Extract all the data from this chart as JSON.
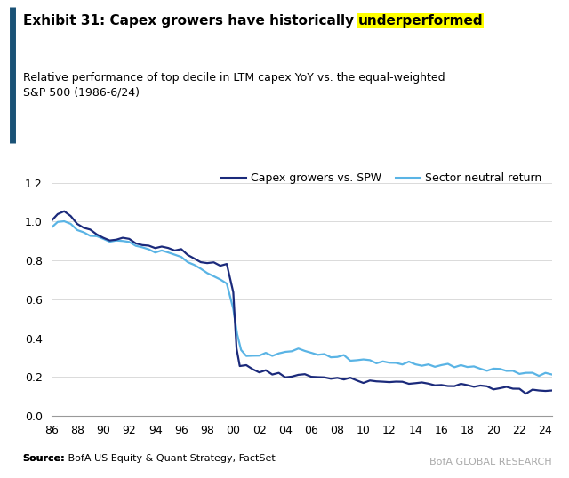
{
  "title_normal": "Exhibit 31: Capex growers have historically ",
  "title_highlight": "underperformed",
  "subtitle_line1": "Relative performance of top decile in LTM capex YoY vs. the equal-weighted",
  "subtitle_line2": "S&P 500 (1986-6/24)",
  "source_bold": "Source:",
  "source_normal": " BofA US Equity & Quant Strategy, FactSet",
  "branding": "BofA GLOBAL RESEARCH",
  "background_color": "#ffffff",
  "highlight_color": "#ffff00",
  "line1_color": "#1b2a7b",
  "line2_color": "#5ab4e5",
  "accent_bar_color": "#1a5276",
  "legend_label1": "Capex growers vs. SPW",
  "legend_label2": "Sector neutral return",
  "xlim": [
    1986,
    2024.5
  ],
  "ylim": [
    0.0,
    1.28
  ],
  "yticks": [
    0.0,
    0.2,
    0.4,
    0.6,
    0.8,
    1.0,
    1.2
  ],
  "xtick_labels": [
    "86",
    "88",
    "90",
    "92",
    "94",
    "96",
    "98",
    "00",
    "02",
    "04",
    "06",
    "08",
    "10",
    "12",
    "14",
    "16",
    "18",
    "20",
    "22",
    "24"
  ],
  "xtick_values": [
    1986,
    1988,
    1990,
    1992,
    1994,
    1996,
    1998,
    2000,
    2002,
    2004,
    2006,
    2008,
    2010,
    2012,
    2014,
    2016,
    2018,
    2020,
    2022,
    2024
  ],
  "capex_x": [
    1986.0,
    1986.5,
    1987.0,
    1987.5,
    1988.0,
    1988.5,
    1989.0,
    1989.5,
    1990.0,
    1990.5,
    1991.0,
    1991.5,
    1992.0,
    1992.5,
    1993.0,
    1993.5,
    1994.0,
    1994.5,
    1995.0,
    1995.5,
    1996.0,
    1996.5,
    1997.0,
    1997.5,
    1998.0,
    1998.5,
    1999.0,
    1999.5,
    2000.0,
    2000.25,
    2000.5,
    2001.0,
    2001.5,
    2002.0,
    2002.5,
    2003.0,
    2003.5,
    2004.0,
    2004.5,
    2005.0,
    2005.5,
    2006.0,
    2006.5,
    2007.0,
    2007.5,
    2008.0,
    2008.5,
    2009.0,
    2009.5,
    2010.0,
    2010.5,
    2011.0,
    2011.5,
    2012.0,
    2012.5,
    2013.0,
    2013.5,
    2014.0,
    2014.5,
    2015.0,
    2015.5,
    2016.0,
    2016.5,
    2017.0,
    2017.5,
    2018.0,
    2018.5,
    2019.0,
    2019.5,
    2020.0,
    2020.5,
    2021.0,
    2021.5,
    2022.0,
    2022.5,
    2023.0,
    2023.5,
    2024.0,
    2024.5
  ],
  "capex_y": [
    1.0,
    1.04,
    1.05,
    1.02,
    0.99,
    0.97,
    0.95,
    0.93,
    0.92,
    0.9,
    0.91,
    0.92,
    0.91,
    0.9,
    0.89,
    0.88,
    0.87,
    0.87,
    0.87,
    0.86,
    0.85,
    0.83,
    0.81,
    0.8,
    0.79,
    0.79,
    0.78,
    0.78,
    0.64,
    0.35,
    0.26,
    0.25,
    0.24,
    0.23,
    0.23,
    0.22,
    0.22,
    0.21,
    0.21,
    0.21,
    0.21,
    0.2,
    0.2,
    0.2,
    0.2,
    0.2,
    0.19,
    0.19,
    0.18,
    0.18,
    0.18,
    0.18,
    0.18,
    0.17,
    0.17,
    0.17,
    0.17,
    0.17,
    0.17,
    0.16,
    0.16,
    0.16,
    0.16,
    0.16,
    0.16,
    0.15,
    0.15,
    0.15,
    0.15,
    0.14,
    0.14,
    0.14,
    0.14,
    0.13,
    0.13,
    0.13,
    0.13,
    0.13,
    0.13
  ],
  "sector_x": [
    1986.0,
    1986.5,
    1987.0,
    1987.5,
    1988.0,
    1988.5,
    1989.0,
    1989.5,
    1990.0,
    1990.5,
    1991.0,
    1991.5,
    1992.0,
    1992.5,
    1993.0,
    1993.5,
    1994.0,
    1994.5,
    1995.0,
    1995.5,
    1996.0,
    1996.5,
    1997.0,
    1997.5,
    1998.0,
    1998.5,
    1999.0,
    1999.5,
    2000.0,
    2000.3,
    2000.6,
    2001.0,
    2001.5,
    2002.0,
    2002.5,
    2003.0,
    2003.5,
    2004.0,
    2004.5,
    2005.0,
    2005.5,
    2006.0,
    2006.5,
    2007.0,
    2007.5,
    2008.0,
    2008.5,
    2009.0,
    2009.5,
    2010.0,
    2010.5,
    2011.0,
    2011.5,
    2012.0,
    2012.5,
    2013.0,
    2013.5,
    2014.0,
    2014.5,
    2015.0,
    2015.5,
    2016.0,
    2016.5,
    2017.0,
    2017.5,
    2018.0,
    2018.5,
    2019.0,
    2019.5,
    2020.0,
    2020.5,
    2021.0,
    2021.5,
    2022.0,
    2022.5,
    2023.0,
    2023.5,
    2024.0,
    2024.5
  ],
  "sector_y": [
    0.98,
    1.0,
    1.0,
    0.98,
    0.96,
    0.95,
    0.93,
    0.92,
    0.91,
    0.9,
    0.9,
    0.9,
    0.89,
    0.88,
    0.87,
    0.86,
    0.85,
    0.85,
    0.84,
    0.83,
    0.82,
    0.8,
    0.78,
    0.76,
    0.74,
    0.72,
    0.7,
    0.67,
    0.55,
    0.42,
    0.34,
    0.32,
    0.31,
    0.31,
    0.31,
    0.31,
    0.32,
    0.33,
    0.34,
    0.34,
    0.33,
    0.32,
    0.32,
    0.31,
    0.31,
    0.3,
    0.3,
    0.29,
    0.29,
    0.29,
    0.29,
    0.28,
    0.28,
    0.28,
    0.27,
    0.27,
    0.27,
    0.27,
    0.26,
    0.26,
    0.26,
    0.26,
    0.26,
    0.26,
    0.26,
    0.25,
    0.25,
    0.25,
    0.24,
    0.24,
    0.24,
    0.23,
    0.23,
    0.22,
    0.22,
    0.22,
    0.21,
    0.21,
    0.21
  ]
}
